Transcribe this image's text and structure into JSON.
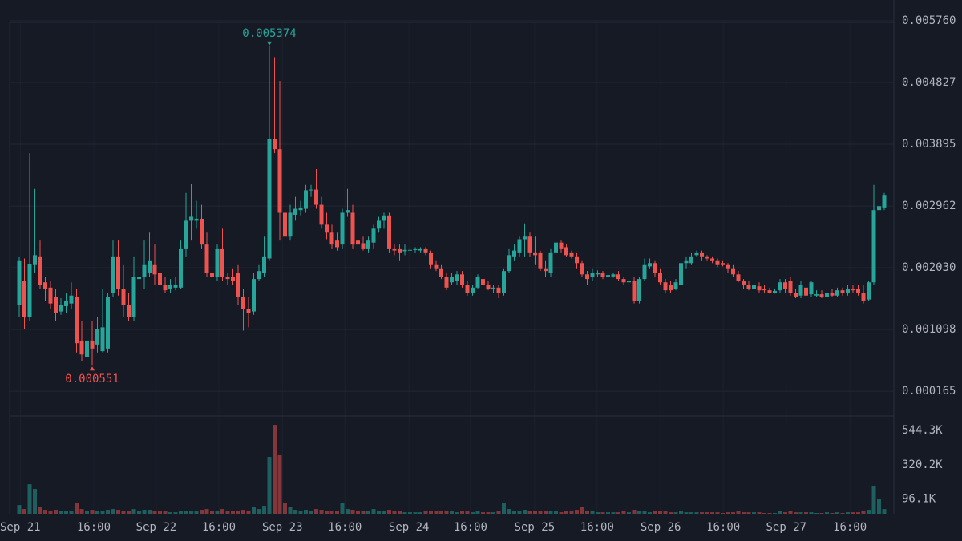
{
  "chart_data": {
    "type": "candlestick",
    "up_color": "#26a69a",
    "down_color": "#ef5350",
    "grid": true,
    "ylim": [
      -0.000209,
      0.006074
    ],
    "yticks": [
      0.000165,
      0.001098,
      {
        "value": 0.00203,
        "label": "0.002030"
      },
      0.002962,
      0.003895,
      0.004827,
      {
        "value": 0.00576,
        "label": "0.005760"
      }
    ],
    "volume_ylim": [
      0,
      638000
    ],
    "volume_yticks": [
      {
        "value": 96100,
        "label": "96.1K"
      },
      {
        "value": 320200,
        "label": "320.2K"
      },
      {
        "value": 544300,
        "label": "544.3K"
      }
    ],
    "xticks": [
      {
        "value": 0.2,
        "label": "Sep 21"
      },
      {
        "value": 14.3,
        "label": "16:00"
      },
      {
        "value": 26.3,
        "label": "Sep 22"
      },
      {
        "value": 38.3,
        "label": "16:00"
      },
      {
        "value": 50.5,
        "label": "Sep 23"
      },
      {
        "value": 62.5,
        "label": "16:00"
      },
      {
        "value": 74.8,
        "label": "Sep 24"
      },
      {
        "value": 86.6,
        "label": "16:00"
      },
      {
        "value": 98.9,
        "label": "Sep 25"
      },
      {
        "value": 110.9,
        "label": "16:00"
      },
      {
        "value": 123.1,
        "label": "Sep 26"
      },
      {
        "value": 135.1,
        "label": "16:00"
      },
      {
        "value": 147.2,
        "label": "Sep 27"
      },
      {
        "value": 159.4,
        "label": "16:00"
      }
    ],
    "ohlc": [
      [
        0.00147,
        0.00219,
        0.00129,
        0.00213
      ],
      [
        0.00183,
        0.00217,
        0.00111,
        0.00129
      ],
      [
        0.00129,
        0.00376,
        0.00123,
        0.00209
      ],
      [
        0.00207,
        0.00322,
        0.00195,
        0.00222
      ],
      [
        0.00219,
        0.00244,
        0.00171,
        0.00177
      ],
      [
        0.00181,
        0.00189,
        0.00153,
        0.00171
      ],
      [
        0.00173,
        0.00183,
        0.00141,
        0.00149
      ],
      [
        0.00159,
        0.00171,
        0.00123,
        0.00135
      ],
      [
        0.00137,
        0.00157,
        0.00132,
        0.00147
      ],
      [
        0.00145,
        0.00165,
        0.00135,
        0.00153
      ],
      [
        0.00149,
        0.00181,
        0.00141,
        0.00161
      ],
      [
        0.00159,
        0.00171,
        0.00075,
        0.00089
      ],
      [
        0.00093,
        0.00123,
        0.00062,
        0.00072
      ],
      [
        0.00068,
        0.00099,
        0.00062,
        0.00093
      ],
      [
        0.00093,
        0.00123,
        0.000551,
        0.00081
      ],
      [
        0.00087,
        0.00129,
        0.00075,
        0.00111
      ],
      [
        0.00077,
        0.00171,
        0.00075,
        0.00113
      ],
      [
        0.00081,
        0.00165,
        0.00075,
        0.00159
      ],
      [
        0.00165,
        0.00244,
        0.00159,
        0.00219
      ],
      [
        0.00219,
        0.00244,
        0.00161,
        0.00171
      ],
      [
        0.00171,
        0.00207,
        0.00129,
        0.00147
      ],
      [
        0.00147,
        0.00165,
        0.00123,
        0.00129
      ],
      [
        0.00129,
        0.00219,
        0.00123,
        0.00189
      ],
      [
        0.00186,
        0.00256,
        0.00171,
        0.00189
      ],
      [
        0.00189,
        0.00244,
        0.00171,
        0.00207
      ],
      [
        0.00195,
        0.00256,
        0.00189,
        0.00213
      ],
      [
        0.00207,
        0.00238,
        0.00177,
        0.00193
      ],
      [
        0.00195,
        0.00207,
        0.00169,
        0.00177
      ],
      [
        0.00177,
        0.00189,
        0.00165,
        0.00169
      ],
      [
        0.00171,
        0.00186,
        0.00165,
        0.00177
      ],
      [
        0.00173,
        0.00189,
        0.00169,
        0.00177
      ],
      [
        0.00173,
        0.00244,
        0.00171,
        0.00231
      ],
      [
        0.00231,
        0.00316,
        0.00219,
        0.00274
      ],
      [
        0.00274,
        0.0033,
        0.00244,
        0.0028
      ],
      [
        0.00274,
        0.00304,
        0.00262,
        0.00277
      ],
      [
        0.00277,
        0.00298,
        0.00231,
        0.00238
      ],
      [
        0.00238,
        0.00256,
        0.00189,
        0.00195
      ],
      [
        0.00195,
        0.00238,
        0.00183,
        0.00189
      ],
      [
        0.00189,
        0.00238,
        0.00183,
        0.00231
      ],
      [
        0.00231,
        0.00262,
        0.00183,
        0.00189
      ],
      [
        0.00189,
        0.00195,
        0.00177,
        0.00186
      ],
      [
        0.00189,
        0.00201,
        0.00177,
        0.00183
      ],
      [
        0.00195,
        0.00207,
        0.00147,
        0.00159
      ],
      [
        0.00159,
        0.00171,
        0.00108,
        0.00141
      ],
      [
        0.00141,
        0.00159,
        0.00113,
        0.00135
      ],
      [
        0.00137,
        0.00195,
        0.00132,
        0.00186
      ],
      [
        0.00186,
        0.00207,
        0.00183,
        0.00198
      ],
      [
        0.00195,
        0.0025,
        0.00189,
        0.00219
      ],
      [
        0.00217,
        0.005374,
        0.00213,
        0.00398
      ],
      [
        0.00398,
        0.00521,
        0.00376,
        0.00382
      ],
      [
        0.00382,
        0.00485,
        0.00244,
        0.00286
      ],
      [
        0.00286,
        0.00316,
        0.00244,
        0.0025
      ],
      [
        0.0025,
        0.00298,
        0.00244,
        0.00286
      ],
      [
        0.00283,
        0.0031,
        0.00274,
        0.00292
      ],
      [
        0.0029,
        0.00304,
        0.00282,
        0.00294
      ],
      [
        0.00292,
        0.00328,
        0.00286,
        0.0032
      ],
      [
        0.0032,
        0.00328,
        0.0031,
        0.00321
      ],
      [
        0.00321,
        0.00352,
        0.00292,
        0.00298
      ],
      [
        0.00298,
        0.0031,
        0.00262,
        0.00268
      ],
      [
        0.00268,
        0.00286,
        0.00246,
        0.00256
      ],
      [
        0.00256,
        0.00268,
        0.00231,
        0.00238
      ],
      [
        0.00244,
        0.00256,
        0.00229,
        0.00234
      ],
      [
        0.00238,
        0.00292,
        0.00231,
        0.00286
      ],
      [
        0.00286,
        0.00322,
        0.0028,
        0.0029
      ],
      [
        0.00286,
        0.00298,
        0.00231,
        0.00238
      ],
      [
        0.00244,
        0.00268,
        0.00231,
        0.00238
      ],
      [
        0.0024,
        0.0025,
        0.00229,
        0.00231
      ],
      [
        0.00231,
        0.0025,
        0.00225,
        0.00244
      ],
      [
        0.00241,
        0.00268,
        0.00231,
        0.00262
      ],
      [
        0.00262,
        0.0028,
        0.00256,
        0.00274
      ],
      [
        0.00274,
        0.00286,
        0.00262,
        0.00282
      ],
      [
        0.00282,
        0.00286,
        0.00225,
        0.00231
      ],
      [
        0.00231,
        0.00238,
        0.00222,
        0.00229
      ],
      [
        0.00231,
        0.00238,
        0.00213,
        0.00225
      ],
      [
        0.00228,
        0.00238,
        0.00222,
        0.0023
      ],
      [
        0.00229,
        0.00234,
        0.00224,
        0.0023
      ],
      [
        0.0023,
        0.00234,
        0.00225,
        0.00231
      ],
      [
        0.00229,
        0.00234,
        0.00225,
        0.00231
      ],
      [
        0.00231,
        0.00234,
        0.00222,
        0.00225
      ],
      [
        0.00225,
        0.00229,
        0.00201,
        0.00207
      ],
      [
        0.00207,
        0.00213,
        0.00198,
        0.00201
      ],
      [
        0.00201,
        0.00207,
        0.00186,
        0.00189
      ],
      [
        0.00189,
        0.00195,
        0.00169,
        0.00173
      ],
      [
        0.00181,
        0.00195,
        0.00177,
        0.00189
      ],
      [
        0.00183,
        0.00198,
        0.00177,
        0.00193
      ],
      [
        0.00193,
        0.00198,
        0.00173,
        0.00177
      ],
      [
        0.00177,
        0.00183,
        0.00161,
        0.00165
      ],
      [
        0.00165,
        0.00177,
        0.00161,
        0.00173
      ],
      [
        0.00173,
        0.00193,
        0.00171,
        0.00189
      ],
      [
        0.00186,
        0.00189,
        0.00171,
        0.00177
      ],
      [
        0.00177,
        0.00183,
        0.00169,
        0.00171
      ],
      [
        0.00171,
        0.00177,
        0.00165,
        0.00173
      ],
      [
        0.00173,
        0.00177,
        0.00157,
        0.00165
      ],
      [
        0.00165,
        0.00201,
        0.00161,
        0.00198
      ],
      [
        0.00198,
        0.00231,
        0.00195,
        0.00222
      ],
      [
        0.00219,
        0.00238,
        0.00213,
        0.00229
      ],
      [
        0.00225,
        0.0025,
        0.00219,
        0.00246
      ],
      [
        0.00246,
        0.0027,
        0.00219,
        0.0025
      ],
      [
        0.0025,
        0.00256,
        0.00219,
        0.00225
      ],
      [
        0.00225,
        0.0025,
        0.00207,
        0.00222
      ],
      [
        0.00225,
        0.00229,
        0.00198,
        0.00201
      ],
      [
        0.00201,
        0.00213,
        0.00189,
        0.00198
      ],
      [
        0.00195,
        0.00231,
        0.00189,
        0.00225
      ],
      [
        0.00225,
        0.00246,
        0.00222,
        0.00241
      ],
      [
        0.00241,
        0.00244,
        0.00225,
        0.00231
      ],
      [
        0.00234,
        0.00238,
        0.00219,
        0.00222
      ],
      [
        0.00225,
        0.00229,
        0.00217,
        0.00219
      ],
      [
        0.00219,
        0.00225,
        0.00201,
        0.0021
      ],
      [
        0.0021,
        0.00213,
        0.00189,
        0.00193
      ],
      [
        0.00193,
        0.00198,
        0.00177,
        0.00186
      ],
      [
        0.00189,
        0.00201,
        0.00183,
        0.00195
      ],
      [
        0.00193,
        0.00199,
        0.00189,
        0.00195
      ],
      [
        0.00195,
        0.00198,
        0.00186,
        0.00189
      ],
      [
        0.00189,
        0.00195,
        0.00186,
        0.00192
      ],
      [
        0.0019,
        0.00195,
        0.00188,
        0.00193
      ],
      [
        0.00193,
        0.00198,
        0.00183,
        0.00186
      ],
      [
        0.00186,
        0.00189,
        0.00177,
        0.00181
      ],
      [
        0.00181,
        0.00189,
        0.00177,
        0.00183
      ],
      [
        0.00183,
        0.00189,
        0.00149,
        0.00153
      ],
      [
        0.00153,
        0.00189,
        0.00149,
        0.00186
      ],
      [
        0.00186,
        0.00217,
        0.00183,
        0.00207
      ],
      [
        0.00205,
        0.00217,
        0.00201,
        0.0021
      ],
      [
        0.0021,
        0.00213,
        0.00189,
        0.00195
      ],
      [
        0.00195,
        0.00201,
        0.00177,
        0.00181
      ],
      [
        0.00181,
        0.00186,
        0.00165,
        0.00169
      ],
      [
        0.00177,
        0.00183,
        0.00165,
        0.00169
      ],
      [
        0.00171,
        0.00186,
        0.00169,
        0.00181
      ],
      [
        0.00177,
        0.00217,
        0.00171,
        0.0021
      ],
      [
        0.0021,
        0.00219,
        0.00201,
        0.00213
      ],
      [
        0.0021,
        0.00225,
        0.00207,
        0.00219
      ],
      [
        0.00222,
        0.00229,
        0.00219,
        0.00225
      ],
      [
        0.00225,
        0.00229,
        0.00213,
        0.00219
      ],
      [
        0.00219,
        0.00222,
        0.00213,
        0.00217
      ],
      [
        0.00217,
        0.00219,
        0.0021,
        0.00213
      ],
      [
        0.00213,
        0.00217,
        0.00204,
        0.00207
      ],
      [
        0.0021,
        0.00213,
        0.00205,
        0.00207
      ],
      [
        0.00207,
        0.0021,
        0.00195,
        0.00201
      ],
      [
        0.00201,
        0.00207,
        0.00189,
        0.00193
      ],
      [
        0.00193,
        0.00198,
        0.00181,
        0.00183
      ],
      [
        0.00183,
        0.00186,
        0.00171,
        0.00177
      ],
      [
        0.00177,
        0.00183,
        0.00169,
        0.00171
      ],
      [
        0.00171,
        0.00183,
        0.00169,
        0.00177
      ],
      [
        0.00175,
        0.00181,
        0.00165,
        0.00169
      ],
      [
        0.00171,
        0.00177,
        0.00165,
        0.00169
      ],
      [
        0.00169,
        0.00173,
        0.00164,
        0.00165
      ],
      [
        0.00165,
        0.00171,
        0.00164,
        0.00168
      ],
      [
        0.00169,
        0.00186,
        0.00165,
        0.00181
      ],
      [
        0.00181,
        0.00186,
        0.00165,
        0.00171
      ],
      [
        0.00183,
        0.00189,
        0.00161,
        0.00165
      ],
      [
        0.00165,
        0.00171,
        0.00157,
        0.00159
      ],
      [
        0.00161,
        0.00183,
        0.00157,
        0.00177
      ],
      [
        0.00173,
        0.00181,
        0.00159,
        0.00161
      ],
      [
        0.00163,
        0.00183,
        0.00159,
        0.00181
      ],
      [
        0.00161,
        0.00169,
        0.00159,
        0.00163
      ],
      [
        0.00163,
        0.00169,
        0.00157,
        0.00159
      ],
      [
        0.00159,
        0.00171,
        0.00157,
        0.00165
      ],
      [
        0.00165,
        0.00171,
        0.00159,
        0.00161
      ],
      [
        0.00161,
        0.00173,
        0.00159,
        0.00169
      ],
      [
        0.00169,
        0.00173,
        0.00161,
        0.00165
      ],
      [
        0.00165,
        0.00177,
        0.00161,
        0.00171
      ],
      [
        0.00171,
        0.00177,
        0.00165,
        0.00169
      ],
      [
        0.00171,
        0.00177,
        0.00161,
        0.00165
      ],
      [
        0.00165,
        0.00177,
        0.00149,
        0.00153
      ],
      [
        0.00155,
        0.00183,
        0.00153,
        0.00181
      ],
      [
        0.00181,
        0.00328,
        0.00177,
        0.0029
      ],
      [
        0.0029,
        0.0037,
        0.00282,
        0.00296
      ],
      [
        0.00294,
        0.00316,
        0.0029,
        0.00313
      ]
    ],
    "volume": [
      57000,
      31000,
      193000,
      162000,
      42000,
      26000,
      21000,
      26000,
      16000,
      16000,
      21000,
      73000,
      31000,
      21000,
      26000,
      16000,
      21000,
      26000,
      31000,
      26000,
      21000,
      16000,
      31000,
      21000,
      26000,
      26000,
      21000,
      16000,
      16000,
      10000,
      10000,
      16000,
      21000,
      21000,
      16000,
      26000,
      31000,
      21000,
      16000,
      31000,
      16000,
      16000,
      21000,
      26000,
      21000,
      42000,
      31000,
      52000,
      371000,
      580000,
      382000,
      68000,
      42000,
      26000,
      21000,
      26000,
      16000,
      31000,
      26000,
      21000,
      21000,
      16000,
      73000,
      31000,
      26000,
      21000,
      16000,
      21000,
      31000,
      21000,
      16000,
      26000,
      16000,
      16000,
      10000,
      10000,
      10000,
      10000,
      16000,
      21000,
      16000,
      16000,
      21000,
      16000,
      10000,
      16000,
      21000,
      10000,
      16000,
      10000,
      10000,
      10000,
      16000,
      73000,
      31000,
      16000,
      21000,
      26000,
      16000,
      21000,
      16000,
      21000,
      16000,
      16000,
      10000,
      16000,
      21000,
      26000,
      42000,
      21000,
      16000,
      10000,
      10000,
      10000,
      10000,
      10000,
      16000,
      10000,
      26000,
      21000,
      16000,
      10000,
      21000,
      16000,
      16000,
      10000,
      10000,
      21000,
      10000,
      10000,
      10000,
      10000,
      10000,
      10000,
      10000,
      5000,
      10000,
      10000,
      16000,
      10000,
      10000,
      10000,
      10000,
      5000,
      5000,
      5000,
      16000,
      10000,
      16000,
      10000,
      10000,
      10000,
      10000,
      5000,
      5000,
      10000,
      5000,
      10000,
      5000,
      10000,
      10000,
      10000,
      16000,
      26000,
      183000,
      94000,
      31000
    ]
  }
}
